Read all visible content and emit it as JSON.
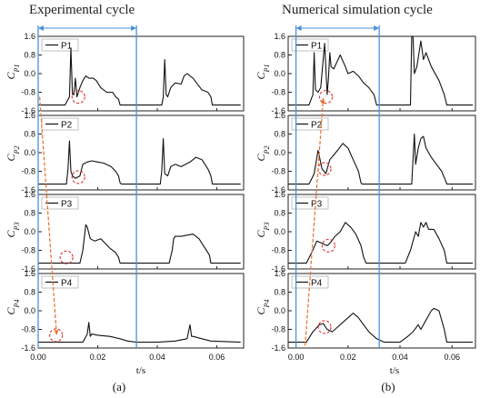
{
  "titles": {
    "left": "Experimental cycle",
    "right": "Numerical simulation cycle"
  },
  "panel_labels": {
    "left": "(a)",
    "right": "(b)"
  },
  "y_axis_labels": [
    "C",
    "C",
    "C",
    "C"
  ],
  "y_axis_subscripts": [
    "P1",
    "P2",
    "P3",
    "P4"
  ],
  "x_label": "t/s",
  "colors": {
    "line": "#111111",
    "cycle_marker": "#4a90d9",
    "arrow": "#e8702a",
    "circle": "#e03030"
  },
  "chart_data": [
    {
      "type": "line",
      "title": "Experimental cycle",
      "xlabel": "t/s",
      "xlim": [
        0.0,
        0.069
      ],
      "ylim": [
        -1.6,
        1.6
      ],
      "xticks": [
        "0.00",
        "0.02",
        "0.04",
        "0.06"
      ],
      "yticks": [
        "1.6",
        "0.8",
        "0.0",
        "-0.8",
        "-1.6"
      ],
      "cycle_span": [
        0.0,
        0.033
      ],
      "panels": [
        {
          "name": "P1",
          "ylabel": "C P1",
          "x": [
            0.0,
            0.009,
            0.0105,
            0.011,
            0.0115,
            0.012,
            0.0125,
            0.013,
            0.014,
            0.015,
            0.016,
            0.017,
            0.0185,
            0.0195,
            0.021,
            0.023,
            0.025,
            0.026,
            0.027,
            0.0275,
            0.028,
            0.033,
            0.0415,
            0.042,
            0.0425,
            0.043,
            0.0435,
            0.0445,
            0.046,
            0.048,
            0.049,
            0.05,
            0.052,
            0.055,
            0.057,
            0.058,
            0.0585,
            0.068
          ],
          "y": [
            -1.35,
            -1.35,
            -1.0,
            1.1,
            -0.9,
            -0.9,
            -0.2,
            -1.0,
            -0.6,
            -0.3,
            -0.1,
            -0.2,
            -0.2,
            -0.3,
            -0.6,
            -0.8,
            -0.8,
            -1.0,
            -1.1,
            -1.35,
            -1.35,
            -1.35,
            -1.35,
            -1.0,
            0.6,
            -0.9,
            -1.0,
            -0.6,
            -0.4,
            -0.45,
            -0.1,
            0.0,
            -0.2,
            -0.7,
            -0.8,
            -1.0,
            -1.35,
            -1.35
          ]
        },
        {
          "name": "P2",
          "ylabel": "C P2",
          "x": [
            0.0,
            0.0095,
            0.01,
            0.0105,
            0.011,
            0.0115,
            0.0125,
            0.014,
            0.015,
            0.0165,
            0.018,
            0.02,
            0.022,
            0.0245,
            0.026,
            0.027,
            0.0275,
            0.028,
            0.033,
            0.041,
            0.0415,
            0.042,
            0.0425,
            0.0435,
            0.0445,
            0.046,
            0.048,
            0.051,
            0.053,
            0.055,
            0.057,
            0.058,
            0.0585,
            0.068
          ],
          "y": [
            -1.35,
            -1.35,
            -0.7,
            0.5,
            -0.8,
            -1.0,
            -1.1,
            -1.0,
            -0.5,
            -0.4,
            -0.35,
            -0.4,
            -0.45,
            -0.6,
            -0.8,
            -1.0,
            -1.3,
            -1.35,
            -1.35,
            -1.35,
            -0.8,
            0.6,
            -0.9,
            -1.0,
            -0.6,
            -0.5,
            -0.6,
            -0.4,
            -0.2,
            -0.3,
            -0.7,
            -1.0,
            -1.35,
            -1.35
          ]
        },
        {
          "name": "P3",
          "ylabel": "C P3",
          "x": [
            0.0,
            0.014,
            0.015,
            0.016,
            0.0165,
            0.0175,
            0.019,
            0.021,
            0.0225,
            0.024,
            0.026,
            0.027,
            0.0275,
            0.033,
            0.044,
            0.045,
            0.0455,
            0.046,
            0.048,
            0.05,
            0.052,
            0.054,
            0.056,
            0.0575,
            0.058,
            0.068
          ],
          "y": [
            -1.35,
            -1.35,
            -0.8,
            0.3,
            0.2,
            -0.3,
            -0.4,
            -0.3,
            -0.5,
            -0.7,
            -0.9,
            -1.1,
            -1.35,
            -1.35,
            -1.35,
            -0.8,
            -0.3,
            -0.2,
            -0.2,
            -0.15,
            -0.1,
            -0.3,
            -0.7,
            -1.0,
            -1.35,
            -1.35
          ]
        },
        {
          "name": "P4",
          "ylabel": "C P4",
          "x": [
            0.0,
            0.015,
            0.0165,
            0.017,
            0.0175,
            0.018,
            0.02,
            0.024,
            0.0275,
            0.03,
            0.033,
            0.04,
            0.046,
            0.05,
            0.051,
            0.0515,
            0.052,
            0.055,
            0.058,
            0.068
          ],
          "y": [
            -1.35,
            -1.35,
            -1.0,
            -0.5,
            -1.1,
            -1.0,
            -1.05,
            -1.1,
            -1.2,
            -1.3,
            -1.35,
            -1.35,
            -1.3,
            -1.2,
            -0.6,
            -1.1,
            -1.1,
            -1.2,
            -1.3,
            -1.35
          ]
        }
      ]
    },
    {
      "type": "line",
      "title": "Numerical simulation cycle",
      "xlabel": "t/s",
      "xlim": [
        -0.003,
        0.069
      ],
      "ylim": [
        -1.6,
        1.6
      ],
      "xticks": [
        "0.00",
        "0.02",
        "0.04",
        "0.06"
      ],
      "yticks": [
        "1.6",
        "0.8",
        "0.0",
        "-0.8",
        "-1.6"
      ],
      "cycle_span": [
        0.0,
        0.032
      ],
      "panels": [
        {
          "name": "P1",
          "ylabel": "C P1",
          "x": [
            -0.003,
            0.005,
            0.0065,
            0.007,
            0.0075,
            0.0085,
            0.0095,
            0.011,
            0.012,
            0.0125,
            0.013,
            0.0135,
            0.0145,
            0.017,
            0.019,
            0.02,
            0.022,
            0.024,
            0.026,
            0.028,
            0.03,
            0.031,
            0.033,
            0.044,
            0.0445,
            0.045,
            0.0455,
            0.0465,
            0.048,
            0.049,
            0.05,
            0.052,
            0.055,
            0.057,
            0.058,
            0.068
          ],
          "y": [
            -1.35,
            -1.35,
            -0.9,
            0.9,
            -0.7,
            -0.8,
            -0.6,
            1.3,
            -0.9,
            -0.2,
            0.9,
            0.3,
            0.2,
            0.8,
            0.3,
            0.0,
            0.1,
            -0.1,
            -0.4,
            -0.6,
            -0.9,
            -1.35,
            -1.35,
            -1.35,
            1.6,
            1.6,
            0.0,
            0.3,
            1.4,
            0.6,
            0.9,
            0.3,
            -0.3,
            -0.9,
            -1.35,
            -1.35
          ]
        },
        {
          "name": "P2",
          "ylabel": "C P2",
          "x": [
            -0.003,
            0.005,
            0.007,
            0.0085,
            0.01,
            0.0115,
            0.013,
            0.0145,
            0.016,
            0.018,
            0.02,
            0.022,
            0.024,
            0.025,
            0.0255,
            0.033,
            0.0445,
            0.0455,
            0.046,
            0.047,
            0.048,
            0.049,
            0.05,
            0.052,
            0.054,
            0.056,
            0.0575,
            0.058,
            0.068
          ],
          "y": [
            -1.35,
            -1.35,
            -0.9,
            0.1,
            -0.7,
            -0.9,
            -0.3,
            -0.1,
            0.1,
            0.4,
            0.2,
            -0.3,
            -0.8,
            -1.3,
            -1.35,
            -1.35,
            -1.35,
            0.8,
            -0.5,
            0.2,
            0.6,
            0.7,
            0.2,
            -0.2,
            -0.5,
            -0.8,
            -1.2,
            -1.35,
            -1.35
          ]
        },
        {
          "name": "P3",
          "ylabel": "C P3",
          "x": [
            -0.003,
            0.004,
            0.006,
            0.008,
            0.01,
            0.012,
            0.013,
            0.015,
            0.017,
            0.019,
            0.021,
            0.023,
            0.025,
            0.026,
            0.027,
            0.033,
            0.042,
            0.044,
            0.046,
            0.047,
            0.048,
            0.049,
            0.05,
            0.051,
            0.053,
            0.055,
            0.057,
            0.058,
            0.068
          ],
          "y": [
            -1.35,
            -1.35,
            -0.9,
            -0.4,
            -0.5,
            -0.6,
            -0.5,
            -0.2,
            0.0,
            0.4,
            0.2,
            -0.1,
            -0.6,
            -1.1,
            -1.35,
            -1.35,
            -1.35,
            -0.8,
            0.0,
            -0.2,
            0.4,
            0.2,
            0.4,
            0.1,
            0.1,
            -0.3,
            -0.8,
            -1.35,
            -1.35
          ]
        },
        {
          "name": "P4",
          "ylabel": "C P4",
          "x": [
            -0.003,
            0.004,
            0.0065,
            0.009,
            0.0105,
            0.012,
            0.014,
            0.016,
            0.018,
            0.02,
            0.022,
            0.024,
            0.026,
            0.028,
            0.031,
            0.034,
            0.04,
            0.043,
            0.045,
            0.047,
            0.048,
            0.05,
            0.051,
            0.052,
            0.053,
            0.055,
            0.057,
            0.058,
            0.068
          ],
          "y": [
            -1.35,
            -1.35,
            -0.9,
            -0.6,
            -0.55,
            -0.8,
            -0.9,
            -0.7,
            -0.5,
            -0.3,
            -0.1,
            -0.3,
            -0.6,
            -0.9,
            -1.2,
            -1.35,
            -1.35,
            -1.1,
            -0.9,
            -0.6,
            -0.8,
            -0.4,
            -0.2,
            0.0,
            0.1,
            0.0,
            -0.8,
            -1.35,
            -1.35
          ]
        }
      ]
    }
  ]
}
